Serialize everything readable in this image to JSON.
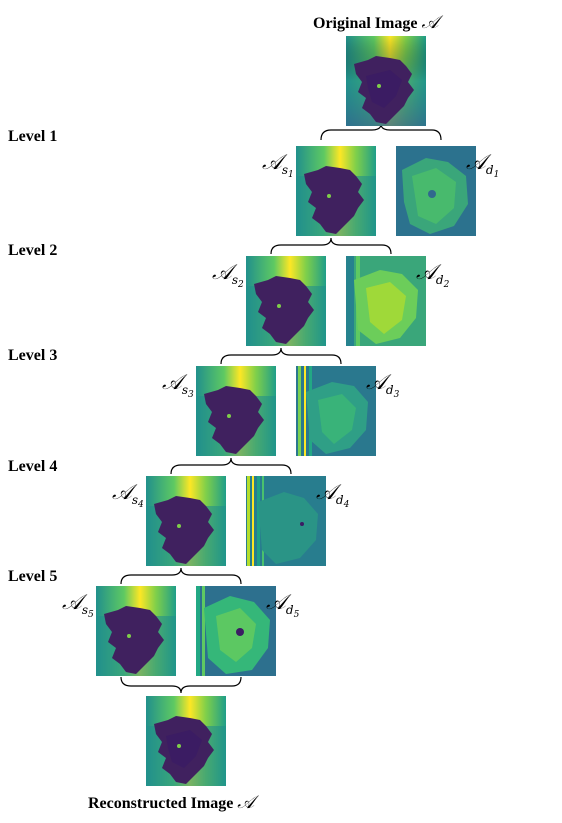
{
  "original_title": "Original Image",
  "reconstructed_title": "Reconstructed Image",
  "math_symbol": "𝒜",
  "levels": [
    {
      "label": "Level 1",
      "s_sub": "1",
      "d_sub": "1"
    },
    {
      "label": "Level 2",
      "s_sub": "2",
      "d_sub": "2"
    },
    {
      "label": "Level 3",
      "s_sub": "3",
      "d_sub": "3"
    },
    {
      "label": "Level 4",
      "s_sub": "4",
      "d_sub": "4"
    },
    {
      "label": "Level 5",
      "s_sub": "5",
      "d_sub": "5"
    }
  ],
  "colors": {
    "viridis_dark": "#3b1c63",
    "viridis_mid": "#21908c",
    "viridis_yellow": "#e8e420",
    "viridis_green": "#7fcf4a",
    "line": "#000000"
  }
}
